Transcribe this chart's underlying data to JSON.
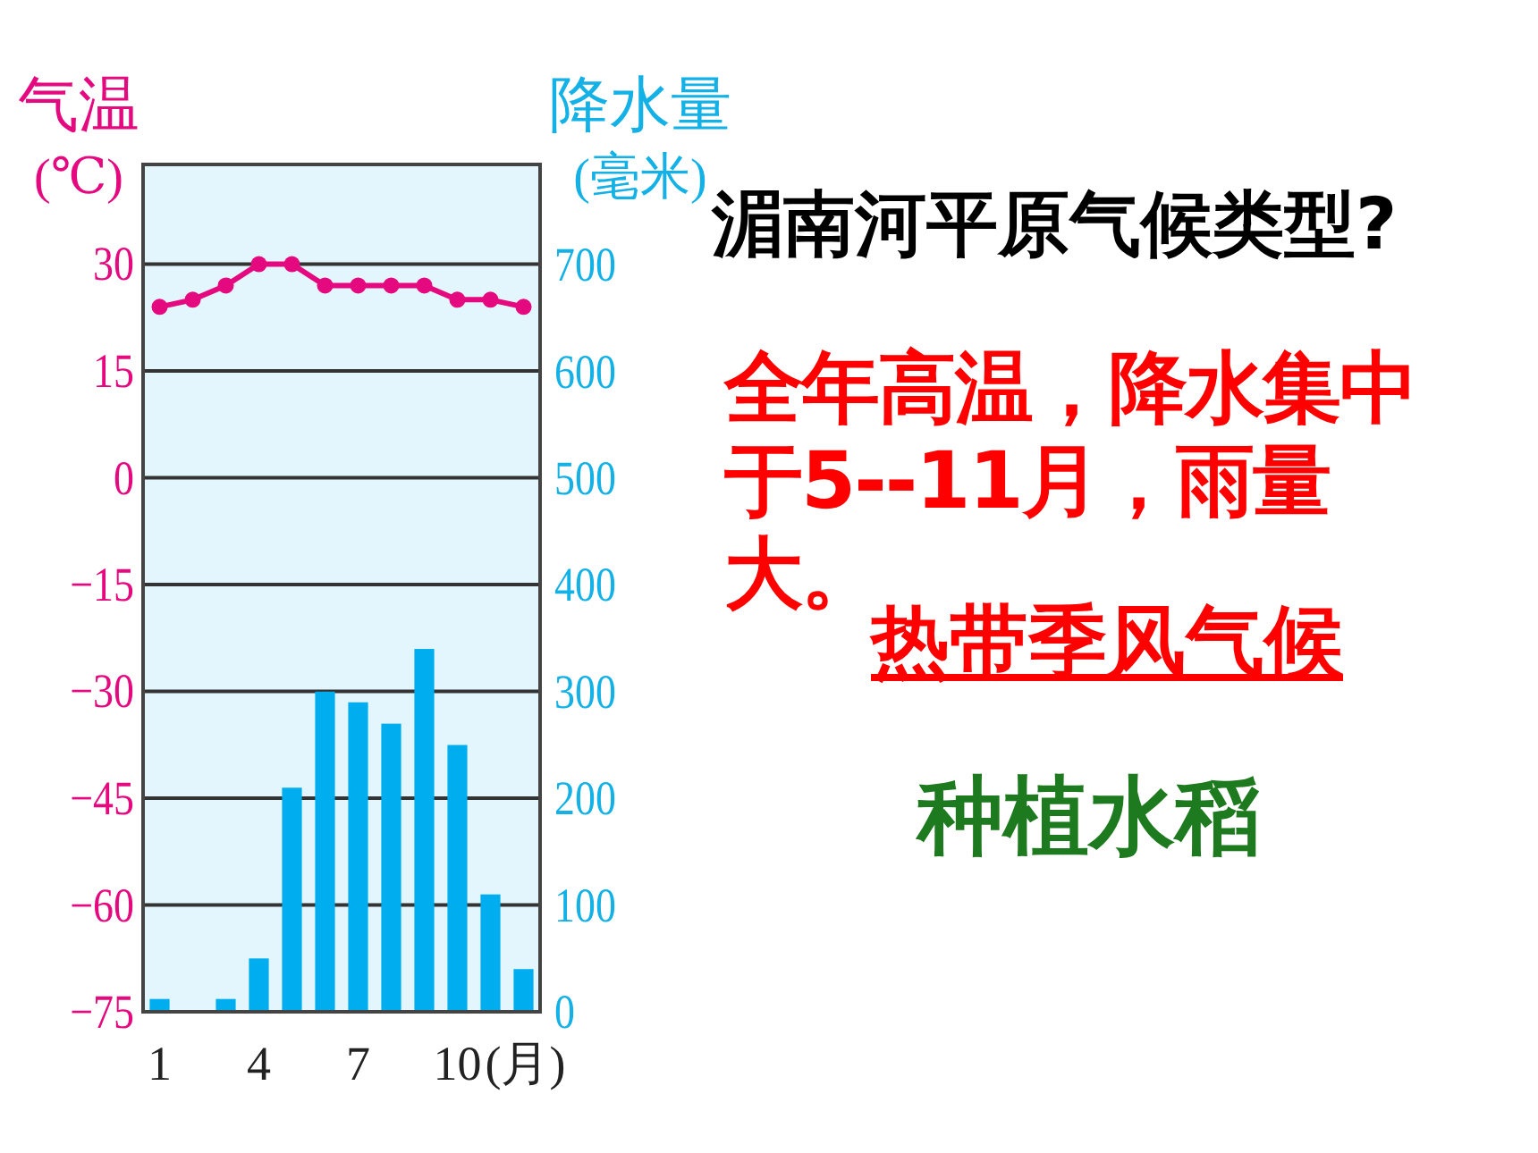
{
  "chart_data": {
    "type": "bar",
    "title": "湄南河平原气候类型?",
    "ylabel": "气温(℃)",
    "y2label": "降水量(毫米)",
    "xlabel": "(月)",
    "categories": [
      "1",
      null,
      null,
      "4",
      null,
      null,
      "7",
      null,
      null,
      "10",
      null,
      null
    ],
    "series": [
      {
        "type": "line",
        "color": "#e5097f",
        "values": [
          24,
          25,
          27,
          30,
          30,
          27,
          27,
          27,
          27,
          25,
          25,
          24
        ]
      },
      {
        "axis": "y2",
        "color": "#00aeef",
        "values": [
          12,
          0,
          12,
          50,
          210,
          300,
          290,
          270,
          340,
          250,
          110,
          40
        ]
      }
    ],
    "ylim": [
      -75,
      44
    ],
    "yticks": [
      -75,
      -60,
      -45,
      -30,
      -15,
      0,
      15,
      30
    ],
    "y2lim": [
      0,
      794
    ],
    "y2ticks": [
      0,
      100,
      200,
      300,
      400,
      500,
      600,
      700
    ],
    "grid": "y",
    "marker": "circle",
    "annotations": [
      "全年高温，降水集中于5--11月，雨量大。",
      "热带季风气候",
      "种植水稻"
    ]
  }
}
